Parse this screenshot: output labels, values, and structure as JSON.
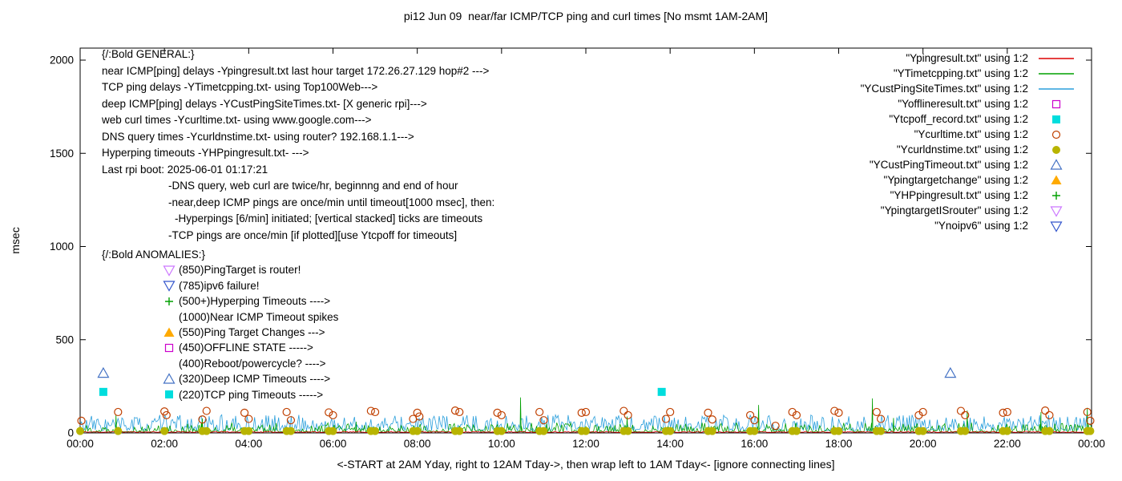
{
  "title": "pi12 Jun 09  near/far ICMP/TCP ping and curl times [No msmt 1AM-2AM]",
  "y_axis_label": "msec",
  "x_axis_caption": "<-START at 2AM Yday, right to 12AM Tday->, then wrap left to 1AM Tday<- [ignore connecting lines]",
  "chart_data": {
    "type": "line",
    "x_unit": "hours",
    "xlim": [
      0,
      24
    ],
    "ylim": [
      0,
      2000
    ],
    "x_ticks": [
      "00:00",
      "02:00",
      "04:00",
      "06:00",
      "08:00",
      "10:00",
      "12:00",
      "14:00",
      "16:00",
      "18:00",
      "20:00",
      "22:00",
      "00:00"
    ],
    "y_ticks": [
      0,
      500,
      1000,
      1500,
      2000
    ],
    "legend_position": "top-right",
    "series": [
      {
        "label": "\"Ypingresult.txt\" using 1:2",
        "color": "#dd0000",
        "style": "line",
        "noise": {
          "seed": 11,
          "base": 3,
          "amp": 6,
          "exp": 2
        }
      },
      {
        "label": "\"YTimetcpping.txt\" using 1:2",
        "color": "#00a000",
        "style": "line",
        "noise": {
          "seed": 22,
          "base": 5,
          "amp": 50,
          "exp": 3
        },
        "spikes": [
          [
            0.85,
            95
          ],
          [
            2.9,
            78
          ],
          [
            6.55,
            60
          ],
          [
            10.45,
            190
          ],
          [
            12.98,
            88
          ],
          [
            16.1,
            150
          ],
          [
            18.8,
            185
          ],
          [
            19.3,
            80
          ],
          [
            21.05,
            120
          ],
          [
            22.8,
            112
          ],
          [
            23.9,
            135
          ]
        ]
      },
      {
        "label": "\"YCustPingSiteTimes.txt\" using 1:2",
        "color": "#2a9fdc",
        "style": "line",
        "noise": {
          "seed": 33,
          "base": 12,
          "amp": 85,
          "exp": 2
        }
      },
      {
        "label": "\"Yofflineresult.txt\" using 1:2",
        "color": "#cc00cc",
        "style": "points",
        "marker": "square-open",
        "points": []
      },
      {
        "label": "\"Ytcpoff_record.txt\" using 1:2",
        "color": "#00dddd",
        "style": "points",
        "marker": "square-filled",
        "points": [
          [
            0.55,
            220
          ],
          [
            13.8,
            220
          ]
        ]
      },
      {
        "label": "\"Ycurltime.txt\" using 1:2",
        "color": "#c04000",
        "style": "points",
        "marker": "circle-open",
        "points": [
          [
            0.03,
            65
          ],
          [
            0.9,
            112
          ],
          [
            2.0,
            115
          ],
          [
            2.05,
            95
          ],
          [
            2.9,
            72
          ],
          [
            3.0,
            118
          ],
          [
            3.9,
            108
          ],
          [
            4.0,
            75
          ],
          [
            4.9,
            112
          ],
          [
            5.0,
            68
          ],
          [
            5.9,
            110
          ],
          [
            6.0,
            95
          ],
          [
            6.9,
            118
          ],
          [
            7.0,
            112
          ],
          [
            7.9,
            75
          ],
          [
            8.0,
            108
          ],
          [
            8.05,
            88
          ],
          [
            8.9,
            120
          ],
          [
            9.0,
            112
          ],
          [
            9.9,
            108
          ],
          [
            10.0,
            95
          ],
          [
            10.9,
            112
          ],
          [
            11.0,
            68
          ],
          [
            11.9,
            108
          ],
          [
            12.0,
            112
          ],
          [
            12.9,
            118
          ],
          [
            13.0,
            95
          ],
          [
            13.9,
            75
          ],
          [
            14.0,
            112
          ],
          [
            14.9,
            108
          ],
          [
            15.0,
            72
          ],
          [
            15.9,
            95
          ],
          [
            16.0,
            68
          ],
          [
            16.5,
            38
          ],
          [
            16.9,
            112
          ],
          [
            17.0,
            95
          ],
          [
            17.9,
            118
          ],
          [
            18.0,
            108
          ],
          [
            18.9,
            112
          ],
          [
            19.0,
            75
          ],
          [
            19.9,
            95
          ],
          [
            20.0,
            112
          ],
          [
            20.9,
            118
          ],
          [
            21.0,
            95
          ],
          [
            21.9,
            108
          ],
          [
            22.0,
            112
          ],
          [
            22.9,
            120
          ],
          [
            23.0,
            95
          ],
          [
            23.9,
            112
          ],
          [
            23.97,
            65
          ]
        ]
      },
      {
        "label": "\"Ycurldnstime.txt\" using 1:2",
        "color": "#b8b400",
        "style": "points",
        "marker": "circle-filled",
        "points": [
          [
            0,
            10
          ],
          [
            0.9,
            10
          ],
          [
            2,
            10
          ],
          [
            2.9,
            10
          ],
          [
            3,
            10
          ],
          [
            3.9,
            10
          ],
          [
            4,
            10
          ],
          [
            4.9,
            10
          ],
          [
            5,
            10
          ],
          [
            5.9,
            10
          ],
          [
            6,
            10
          ],
          [
            6.9,
            10
          ],
          [
            7,
            10
          ],
          [
            7.9,
            10
          ],
          [
            8,
            10
          ],
          [
            8.9,
            10
          ],
          [
            9,
            10
          ],
          [
            9.9,
            10
          ],
          [
            10,
            10
          ],
          [
            10.9,
            10
          ],
          [
            11,
            10
          ],
          [
            11.9,
            10
          ],
          [
            12,
            10
          ],
          [
            12.9,
            10
          ],
          [
            13,
            10
          ],
          [
            13.9,
            10
          ],
          [
            14,
            10
          ],
          [
            14.9,
            10
          ],
          [
            15,
            10
          ],
          [
            15.9,
            10
          ],
          [
            16,
            10
          ],
          [
            16.9,
            10
          ],
          [
            17,
            10
          ],
          [
            17.9,
            10
          ],
          [
            18,
            10
          ],
          [
            18.9,
            10
          ],
          [
            19,
            10
          ],
          [
            19.9,
            10
          ],
          [
            20,
            10
          ],
          [
            20.9,
            10
          ],
          [
            21,
            10
          ],
          [
            21.9,
            10
          ],
          [
            22,
            10
          ],
          [
            22.9,
            10
          ],
          [
            23,
            10
          ],
          [
            23.9,
            10
          ],
          [
            23.97,
            10
          ]
        ]
      },
      {
        "label": "\"YCustPingTimeout.txt\" using 1:2",
        "color": "#4472c4",
        "style": "points",
        "marker": "triangle-open",
        "points": [
          [
            0.55,
            320
          ],
          [
            20.65,
            320
          ]
        ]
      },
      {
        "label": "\"Ypingtargetchange\" using 1:2",
        "color": "#ffaa00",
        "style": "points",
        "marker": "triangle-filled",
        "points": []
      },
      {
        "label": "\"YHPpingresult.txt\" using 1:2",
        "color": "#00a000",
        "style": "points",
        "marker": "plus",
        "points": []
      },
      {
        "label": "\"YpingtargetISrouter\" using 1:2",
        "color": "#cc77ff",
        "style": "points",
        "marker": "nabla-open",
        "points": []
      },
      {
        "label": "\"Ynoipv6\" using 1:2",
        "color": "#3355cc",
        "style": "points",
        "marker": "nabla-open",
        "points": []
      }
    ]
  },
  "annotations": {
    "general": {
      "header": "{/:Bold GENERAL:}",
      "lines": [
        {
          "indent": 0,
          "text": "near ICMP[ping] delays -Ypingresult.txt last hour target 172.26.27.129 hop#2 --->"
        },
        {
          "indent": 0,
          "text": "TCP ping delays -YTimetcpping.txt- using Top100Web--->"
        },
        {
          "indent": 0,
          "text": "deep ICMP[ping] delays -YCustPingSiteTimes.txt- [X generic rpi]--->"
        },
        {
          "indent": 0,
          "text": "web curl times -Ycurltime.txt- using www.google.com--->"
        },
        {
          "indent": 0,
          "text": "DNS query times -Ycurldnstime.txt- using router? 192.168.1.1--->"
        },
        {
          "indent": 0,
          "text": "Hyperping timeouts -YHPpingresult.txt- --->"
        },
        {
          "indent": 0,
          "text": "Last rpi boot: 2025-06-01 01:17:21"
        },
        {
          "indent": 1,
          "text": "-DNS query, web curl are twice/hr, beginnng and end of hour"
        },
        {
          "indent": 1,
          "text": "-near,deep ICMP pings are once/min until timeout[1000 msec], then:"
        },
        {
          "indent": 2,
          "text": "-Hyperpings [6/min] initiated; [vertical stacked] ticks are timeouts"
        },
        {
          "indent": 1,
          "text": "-TCP pings are once/min [if plotted][use Ytcpoff for timeouts]"
        }
      ]
    },
    "anomalies": {
      "header": "{/:Bold ANOMALIES:}",
      "items": [
        {
          "marker": "nabla-open",
          "color": "#cc77ff",
          "text": "(850)PingTarget is router!"
        },
        {
          "marker": "nabla-open",
          "color": "#3355cc",
          "text": "(785)ipv6 failure!"
        },
        {
          "marker": "plus",
          "color": "#00a000",
          "text": "(500+)Hyperping Timeouts ---->"
        },
        {
          "marker": null,
          "color": null,
          "text": "(1000)Near ICMP Timeout spikes"
        },
        {
          "marker": "triangle-filled",
          "color": "#ffaa00",
          "text": "(550)Ping Target Changes --->"
        },
        {
          "marker": "square-open",
          "color": "#cc00cc",
          "text": "(450)OFFLINE STATE ----->"
        },
        {
          "marker": null,
          "color": null,
          "text": "(400)Reboot/powercycle? ---->"
        },
        {
          "marker": "triangle-open",
          "color": "#4472c4",
          "text": "(320)Deep ICMP Timeouts ---->"
        },
        {
          "marker": "square-filled",
          "color": "#00dddd",
          "text": "(220)TCP ping Timeouts ----->"
        }
      ]
    }
  }
}
